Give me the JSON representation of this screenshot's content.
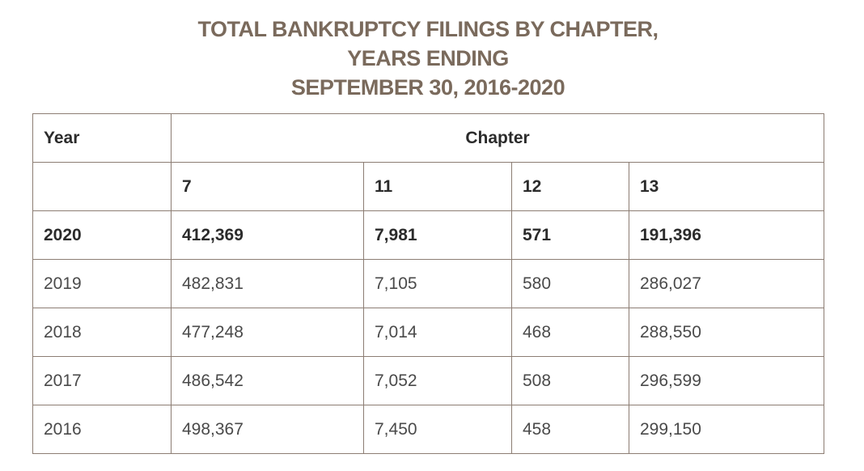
{
  "title": {
    "line1": "TOTAL BANKRUPTCY FILINGS BY CHAPTER,",
    "line2": "YEARS ENDING",
    "line3": "SEPTEMBER 30, 2016-2020"
  },
  "table": {
    "header": {
      "year": "Year",
      "chapter": "Chapter"
    },
    "chapters": [
      "7",
      "11",
      "12",
      "13"
    ],
    "rows": [
      {
        "year": "2020",
        "c7": "412,369",
        "c11": "7,981",
        "c12": "571",
        "c13": "191,396"
      },
      {
        "year": "2019",
        "c7": "482,831",
        "c11": "7,105",
        "c12": "580",
        "c13": "286,027"
      },
      {
        "year": "2018",
        "c7": "477,248",
        "c11": "7,014",
        "c12": "468",
        "c13": "288,550"
      },
      {
        "year": "2017",
        "c7": "486,542",
        "c11": "7,052",
        "c12": "508",
        "c13": "296,599"
      },
      {
        "year": "2016",
        "c7": "498,367",
        "c11": "7,450",
        "c12": "458",
        "c13": "299,150"
      }
    ]
  },
  "colors": {
    "title": "#7a6a5c",
    "border": "#8c7d73",
    "text": "#4a4a4a",
    "bold_text": "#2b2b2b"
  }
}
